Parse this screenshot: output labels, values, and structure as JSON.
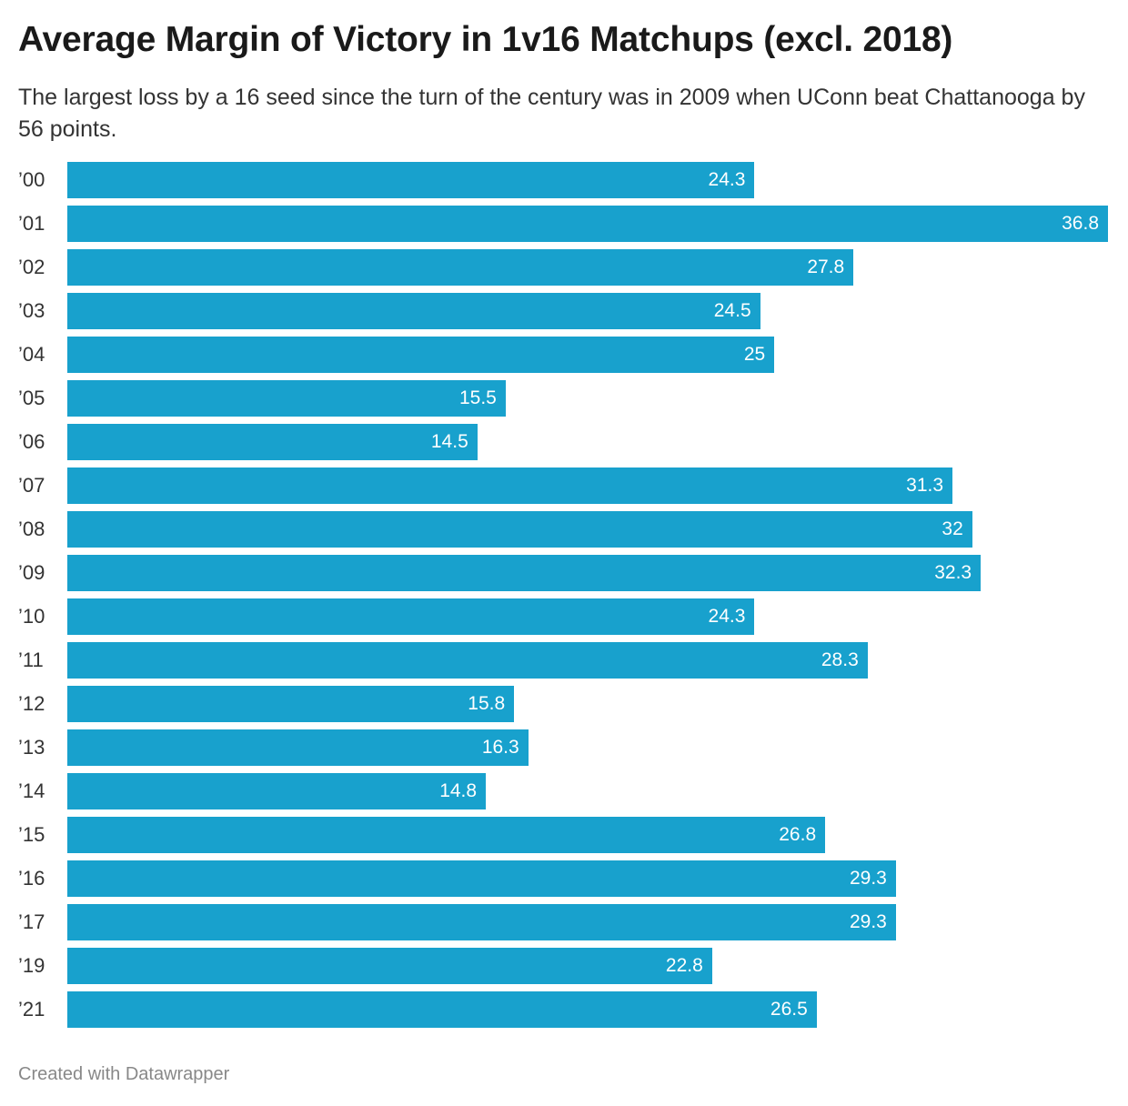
{
  "title": "Average Margin of Victory in 1v16 Matchups (excl. 2018)",
  "subtitle": "The largest loss by a 16 seed since the turn of the century was in 2009 when UConn beat Chattanooga by 56 points.",
  "footer": "Created with Datawrapper",
  "colors": {
    "bar": "#18a1cd",
    "bar_label": "#ffffff",
    "text": "#1a1a1a",
    "footer": "#888888"
  },
  "chart_data": {
    "type": "bar",
    "orientation": "horizontal",
    "title": "Average Margin of Victory in 1v16 Matchups (excl. 2018)",
    "subtitle": "The largest loss by a 16 seed since the turn of the century was in 2009 when UConn beat Chattanooga by 56 points.",
    "categories": [
      "’00",
      "’01",
      "’02",
      "’03",
      "’04",
      "’05",
      "’06",
      "’07",
      "’08",
      "’09",
      "’10",
      "’11",
      "’12",
      "’13",
      "’14",
      "’15",
      "’16",
      "’17",
      "’19",
      "’21"
    ],
    "values": [
      24.3,
      36.8,
      27.8,
      24.5,
      25,
      15.5,
      14.5,
      31.3,
      32,
      32.3,
      24.3,
      28.3,
      15.8,
      16.3,
      14.8,
      26.8,
      29.3,
      29.3,
      22.8,
      26.5
    ],
    "xlim": [
      0,
      36.8
    ],
    "grid": false,
    "legend": "none"
  }
}
